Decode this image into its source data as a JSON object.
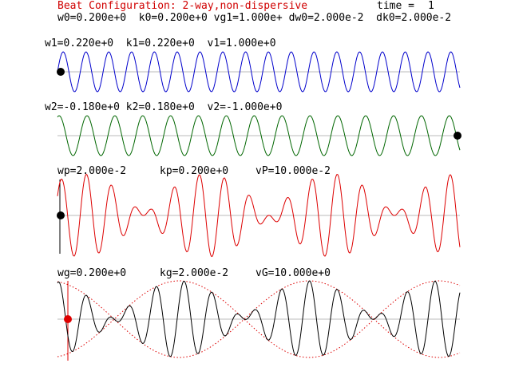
{
  "header": {
    "title": "Beat Configuration: 2-way,non-dispersive",
    "time_label": "time =",
    "time_value": "1",
    "params": "w0=0.200e+0  k0=0.200e+0 vg1=1.000e+ dw0=2.000e-2  dk0=2.000e-2"
  },
  "wave1": {
    "label": "w1=0.220e+0  k1=0.220e+0  v1=1.000e+0",
    "color": "#0000cc",
    "k": 0.22,
    "marker": "left",
    "marker_color": "#000000"
  },
  "wave2": {
    "label": "w2=-0.180e+0 k2=0.180e+0  v2=-1.000e+0",
    "color": "#006600",
    "k": 0.18,
    "marker": "right",
    "marker_color": "#000000"
  },
  "phase": {
    "wp_label": "wp=2.000e-2",
    "kp_label": "kp=0.200e+0",
    "vp_label": "vP=10.000e-2",
    "color": "#dd0000",
    "marker": "left",
    "marker_color": "#000000"
  },
  "group": {
    "wg_label": "wg=0.200e+0",
    "kg_label": "kg=2.000e-2",
    "vg_label": "vG=10.000e+0",
    "color": "#000000",
    "envelope_color": "#dd0000",
    "marker": "left",
    "marker_color": "#dd0000"
  }
}
